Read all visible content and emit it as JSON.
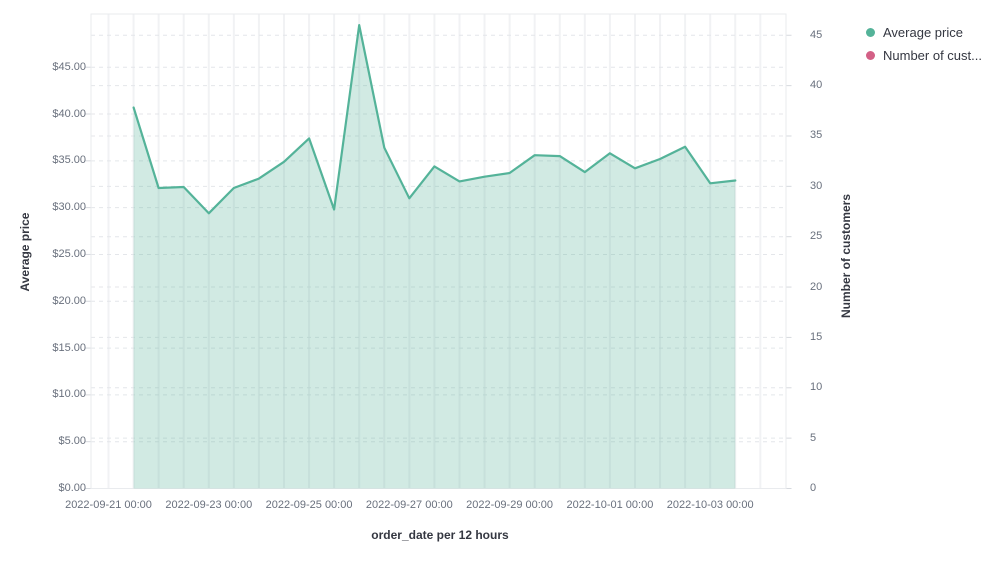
{
  "chart_data": {
    "type": "area",
    "title": "",
    "x": [
      "2022-09-21 12:00",
      "2022-09-22 00:00",
      "2022-09-22 12:00",
      "2022-09-23 00:00",
      "2022-09-23 12:00",
      "2022-09-24 00:00",
      "2022-09-24 12:00",
      "2022-09-25 00:00",
      "2022-09-25 12:00",
      "2022-09-26 00:00",
      "2022-09-26 12:00",
      "2022-09-27 00:00",
      "2022-09-27 12:00",
      "2022-09-28 00:00",
      "2022-09-28 12:00",
      "2022-09-29 00:00",
      "2022-09-29 12:00",
      "2022-09-30 00:00",
      "2022-09-30 12:00",
      "2022-10-01 00:00",
      "2022-10-01 12:00",
      "2022-10-02 00:00",
      "2022-10-02 12:00",
      "2022-10-03 00:00",
      "2022-10-03 12:00"
    ],
    "series": [
      {
        "name": "Average price",
        "color": "#54B399",
        "values": [
          40.7,
          32.1,
          32.2,
          29.4,
          32.1,
          33.1,
          34.9,
          37.4,
          29.8,
          49.5,
          36.4,
          31.0,
          34.4,
          32.8,
          33.3,
          33.7,
          35.6,
          35.5,
          33.8,
          35.8,
          34.2,
          35.2,
          36.5,
          32.6,
          32.9
        ]
      }
    ],
    "legend": [
      {
        "label": "Average price",
        "color": "#54B399"
      },
      {
        "label": "Number of cust...",
        "color": "#D36086"
      }
    ],
    "legend_position": "right",
    "grid": "on",
    "x_axis": {
      "title": "order_date per 12 hours",
      "tick_labels": [
        "2022-09-21 00:00",
        "2022-09-23 00:00",
        "2022-09-25 00:00",
        "2022-09-27 00:00",
        "2022-09-29 00:00",
        "2022-10-01 00:00",
        "2022-10-03 00:00"
      ]
    },
    "y_axis_left": {
      "title": "Average price",
      "range": [
        0,
        45
      ],
      "tick_labels": [
        "$0.00",
        "$5.00",
        "$10.00",
        "$15.00",
        "$20.00",
        "$25.00",
        "$30.00",
        "$35.00",
        "$40.00",
        "$45.00"
      ]
    },
    "y_axis_right": {
      "title": "Number of customers",
      "range": [
        0,
        45
      ],
      "tick_labels": [
        "0",
        "5",
        "10",
        "15",
        "20",
        "25",
        "30",
        "35",
        "40",
        "45"
      ]
    }
  },
  "colors": {
    "series_green": "#54B399",
    "series_pink": "#D36086",
    "fill_green_opacity": "0.27",
    "grid_vertical": "#f1f2f4",
    "grid_dashed": "#e4e6ea",
    "plot_border": "#e9ebee",
    "tick_text": "#69707d",
    "title_text": "#343741"
  }
}
